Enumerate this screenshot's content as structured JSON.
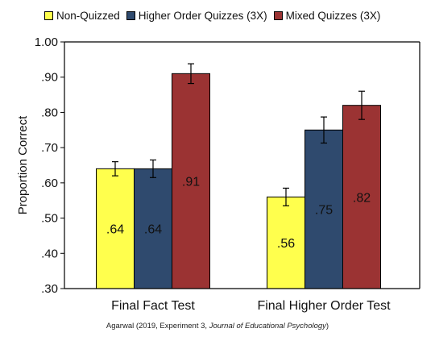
{
  "chart_data": {
    "type": "bar",
    "categories": [
      "Final Fact Test",
      "Final Higher Order Test"
    ],
    "series": [
      {
        "name": "Non-Quizzed",
        "color": "#ffff4d",
        "values": [
          0.64,
          0.56
        ],
        "error": [
          0.02,
          0.025
        ],
        "labels": [
          ".64",
          ".56"
        ]
      },
      {
        "name": "Higher Order Quizzes (3X)",
        "color": "#2f4a6e",
        "values": [
          0.64,
          0.75
        ],
        "error": [
          0.025,
          0.037
        ],
        "labels": [
          ".64",
          ".75"
        ]
      },
      {
        "name": "Mixed Quizzes (3X)",
        "color": "#9b3333",
        "values": [
          0.91,
          0.82
        ],
        "error": [
          0.028,
          0.04
        ],
        "labels": [
          ".91",
          ".82"
        ]
      }
    ],
    "ylabel": "Proportion Correct",
    "xlabel": "",
    "ylim": [
      0.3,
      1.0
    ],
    "yticks": [
      0.3,
      0.4,
      0.5,
      0.6,
      0.7,
      0.8,
      0.9,
      1.0
    ],
    "ytick_labels": [
      ".30",
      ".40",
      ".50",
      ".60",
      ".70",
      ".80",
      ".90",
      "1.00"
    ],
    "grid": false,
    "legend_position": "top"
  },
  "caption": {
    "prefix": "Agarwal (2019, Experiment 3, ",
    "journal": "Journal of Educational Psychology",
    "suffix": ")"
  }
}
